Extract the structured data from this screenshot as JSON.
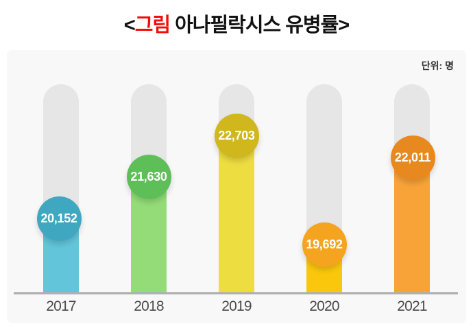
{
  "title": {
    "open": "<",
    "highlight": "그림",
    "rest": " 아나필락시스 유병률>"
  },
  "chart_data": {
    "type": "bar",
    "title": "<그림 아나필락시스 유병률>",
    "unit": "단위: 명",
    "categories": [
      "2017",
      "2018",
      "2019",
      "2020",
      "2021"
    ],
    "values": [
      20152,
      21630,
      22703,
      19692,
      22011
    ],
    "value_labels": [
      "20,152",
      "21,630",
      "22,703",
      "19,692",
      "22,011"
    ],
    "bar_colors": [
      "#62c5da",
      "#94dc78",
      "#eedd40",
      "#fbc70d",
      "#f7a338"
    ],
    "bubble_colors": [
      "#3fa8c0",
      "#5ebf58",
      "#cfb71d",
      "#f4a41e",
      "#e8891f"
    ],
    "track_color": "#e6e6e6",
    "panel_color": "#f8f8f8",
    "axis_color": "#b0b0b0",
    "title_highlight_color": "#f30d08",
    "xlabel": "",
    "ylabel": "명"
  }
}
